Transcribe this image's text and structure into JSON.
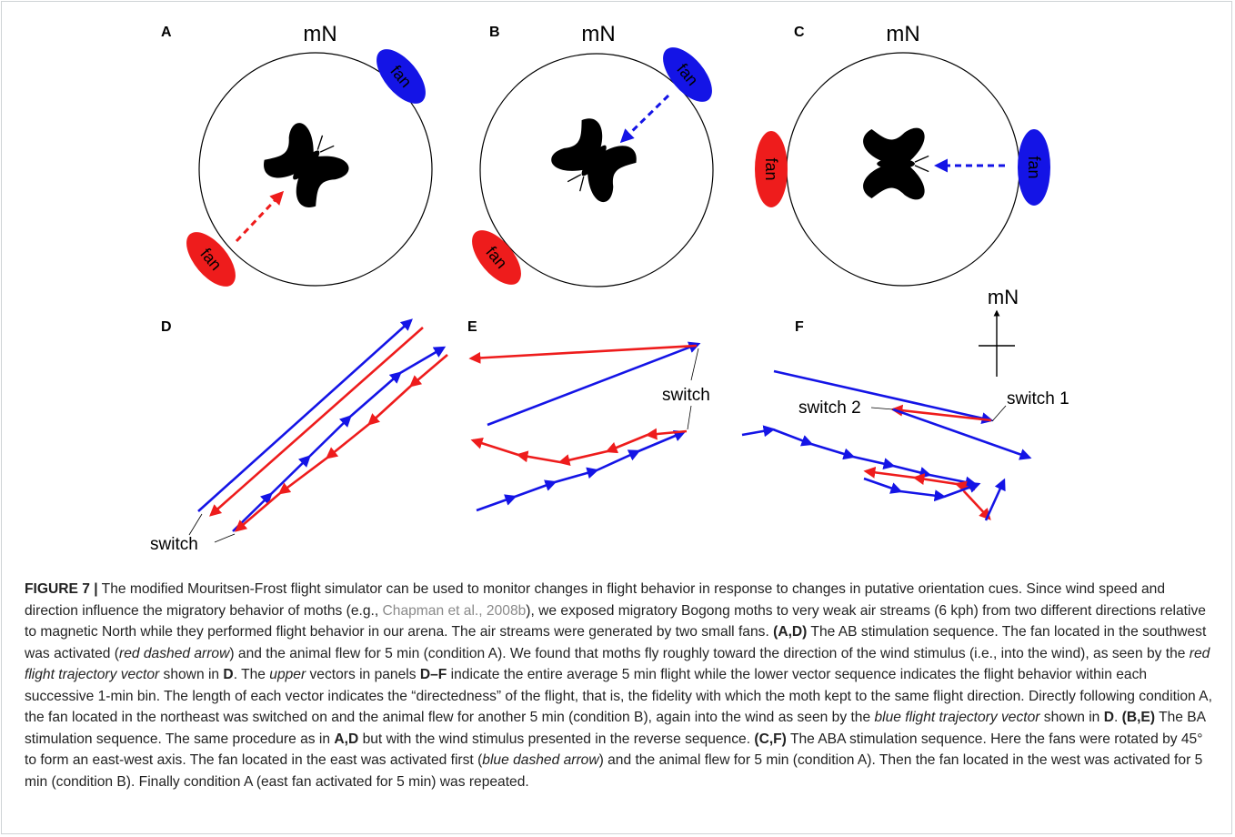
{
  "figure": {
    "panel_labels": [
      "A",
      "B",
      "C",
      "D",
      "E",
      "F"
    ],
    "north_label": "mN",
    "fan_label": "fan",
    "switch_label": "switch",
    "switch1_label": "switch 1",
    "switch2_label": "switch 2",
    "colors": {
      "red": "#ee1c1c",
      "blue": "#1414e6",
      "black": "#000000"
    }
  },
  "caption": {
    "figure_id": "FIGURE 7 |",
    "s1": " The modified Mouritsen-Frost flight simulator can be used to monitor changes in flight behavior in response to changes in putative orientation cues. Since wind speed and direction influence the migratory behavior of moths (e.g., ",
    "cite": "Chapman et al., 2008b",
    "s2": "), we exposed migratory Bogong moths to very weak air streams (6 kph) from two different directions relative to magnetic North while they performed flight behavior in our arena. The air streams were generated by two small fans. ",
    "ad_ref": "(A,D)",
    "s3": " The AB stimulation sequence. The fan located in the southwest was activated (",
    "red_dashed": "red dashed arrow",
    "s4": ") and the animal flew for 5 min (condition A). We found that moths fly roughly toward the direction of the wind stimulus (i.e., into the wind), as seen by the ",
    "red_vec": "red flight trajectory vector",
    "s5": " shown in ",
    "d1": "D",
    "s6": ". The ",
    "upper": "upper",
    "s7": " vectors in panels ",
    "df": "D–F",
    "s8": " indicate the entire average 5 min flight while the lower vector sequence indicates the flight behavior within each successive 1-min bin. The length of each vector indicates the “directedness” of the flight, that is, the fidelity with which the moth kept to the same flight direction. Directly following condition A, the fan located in the northeast was switched on and the animal flew for another 5 min (condition B), again into the wind as seen by the ",
    "blue_vec": "blue flight trajectory vector",
    "s9": " shown in ",
    "d2": "D",
    "s10": ". ",
    "be_ref": "(B,E)",
    "s11": " The BA stimulation sequence. The same procedure as in ",
    "ad2": "A,D",
    "s12": " but with the wind stimulus presented in the reverse sequence. ",
    "cf_ref": "(C,F)",
    "s13": " The ABA stimulation sequence. Here the fans were rotated by 45° to form an east-west axis. The fan located in the east was activated first (",
    "blue_dashed": "blue dashed arrow",
    "s14": ") and the animal flew for 5 min (condition A). Then the fan located in the west was activated for 5 min (condition B). Finally condition A (east fan activated for 5 min) was repeated."
  }
}
